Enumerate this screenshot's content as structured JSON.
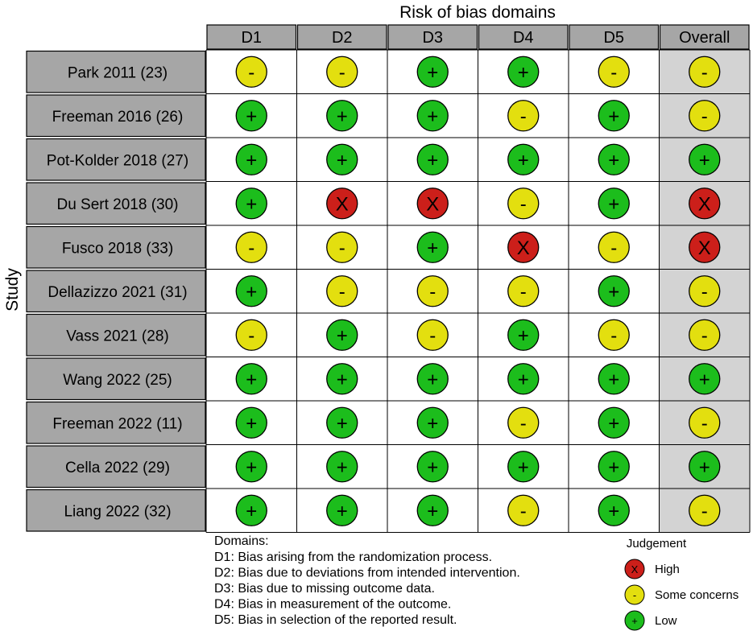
{
  "chart_data": {
    "type": "table",
    "title": "Risk of bias domains",
    "ylabel": "Study",
    "columns": [
      "D1",
      "D2",
      "D3",
      "D4",
      "D5",
      "Overall"
    ],
    "studies": [
      "Park 2011 (23)",
      "Freeman 2016 (26)",
      "Pot-Kolder 2018 (27)",
      "Du Sert 2018 (30)",
      "Fusco 2018 (33)",
      "Dellazizzo 2021 (31)",
      "Vass 2021 (28)",
      "Wang 2022 (25)",
      "Freeman 2022 (11)",
      "Cella 2022 (29)",
      "Liang 2022 (32)"
    ],
    "judgements": [
      [
        "some",
        "some",
        "low",
        "low",
        "some",
        "some"
      ],
      [
        "low",
        "low",
        "low",
        "some",
        "low",
        "some"
      ],
      [
        "low",
        "low",
        "low",
        "low",
        "low",
        "low"
      ],
      [
        "low",
        "high",
        "high",
        "some",
        "low",
        "high"
      ],
      [
        "some",
        "some",
        "low",
        "high",
        "some",
        "high"
      ],
      [
        "low",
        "some",
        "some",
        "some",
        "low",
        "some"
      ],
      [
        "some",
        "low",
        "some",
        "low",
        "some",
        "some"
      ],
      [
        "low",
        "low",
        "low",
        "low",
        "low",
        "low"
      ],
      [
        "low",
        "low",
        "low",
        "some",
        "low",
        "some"
      ],
      [
        "low",
        "low",
        "low",
        "low",
        "low",
        "low"
      ],
      [
        "low",
        "low",
        "low",
        "some",
        "low",
        "some"
      ]
    ],
    "levels": {
      "high": {
        "symbol": "X",
        "color": "#cc1f1a",
        "label": "High"
      },
      "some": {
        "symbol": "-",
        "color": "#e3df0f",
        "label": "Some concerns"
      },
      "low": {
        "symbol": "+",
        "color": "#1cbd1c",
        "label": "Low"
      }
    },
    "domains_title": "Domains:",
    "domains": [
      "D1: Bias arising from the randomization process.",
      "D2: Bias due to deviations from intended intervention.",
      "D3: Bias due to missing outcome data.",
      "D4: Bias in measurement of the outcome.",
      "D5: Bias in selection of the reported result."
    ],
    "legend_title": "Judgement",
    "legend_order": [
      "high",
      "some",
      "low"
    ],
    "colors": {
      "header_fill": "#a6a6a6",
      "study_fill": "#a6a6a6",
      "overall_fill": "#d3d3d3",
      "cell_fill": "#ffffff",
      "grid": "#000000"
    }
  }
}
